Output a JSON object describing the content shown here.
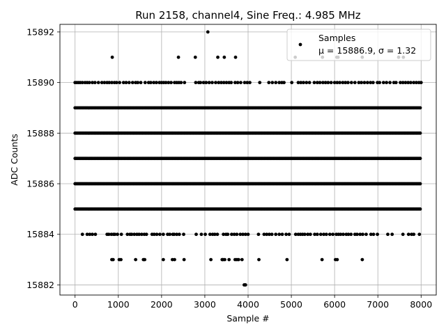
{
  "chart_data": {
    "type": "scatter",
    "title": "Run 2158, channel4, Sine Freq.: 4.985 MHz",
    "xlabel": "Sample #",
    "ylabel": "ADC Counts",
    "xlim": [
      -350,
      8350
    ],
    "ylim": [
      15881.6,
      15892.3
    ],
    "xticks": [
      0,
      1000,
      2000,
      3000,
      4000,
      5000,
      6000,
      7000,
      8000
    ],
    "yticks": [
      15882,
      15884,
      15886,
      15888,
      15890,
      15892
    ],
    "grid": true,
    "legend": {
      "placement": "top-right",
      "series_label": "Samples",
      "stats_label": "μ = 15886.9, σ = 1.32"
    },
    "series": [
      {
        "name": "Samples",
        "color": "#000000",
        "marker": "circle",
        "dense_levels": [
          15885,
          15886,
          15887,
          15888,
          15889
        ],
        "sample_range": [
          0,
          8000
        ],
        "sparse_points": [
          {
            "level": 15890,
            "x": [
              0,
              40,
              80,
              120,
              170,
              230,
              280,
              330,
              400,
              460,
              540,
              620,
              680,
              740,
              790,
              850,
              910,
              960,
              1030,
              1120,
              1180,
              1250,
              1330,
              1400,
              1450,
              1520,
              1620,
              1700,
              1750,
              1820,
              1880,
              1950,
              2000,
              2050,
              2100,
              2160,
              2220,
              2300,
              2350,
              2400,
              2450,
              2530,
              2790,
              2860,
              2900,
              2970,
              3030,
              3100,
              3170,
              3250,
              3320,
              3380,
              3440,
              3500,
              3560,
              3610,
              3700,
              3760,
              3830,
              3920,
              3980,
              4040,
              4270,
              4480,
              4560,
              4640,
              4720,
              4780,
              4830,
              5010,
              5160,
              5220,
              5280,
              5350,
              5420,
              5530,
              5600,
              5660,
              5730,
              5790,
              5850,
              5920,
              6000,
              6060,
              6120,
              6190,
              6250,
              6310,
              6390,
              6470,
              6560,
              6620,
              6690,
              6760,
              6830,
              6890,
              6990,
              7040,
              7130,
              7200,
              7280,
              7370,
              7420,
              7520,
              7580,
              7640,
              7700,
              7760,
              7830,
              7890,
              7950,
              8000
            ]
          },
          {
            "level": 15884,
            "x": [
              170,
              280,
              340,
              400,
              470,
              740,
              780,
              840,
              890,
              920,
              980,
              1070,
              1210,
              1270,
              1310,
              1370,
              1430,
              1480,
              1540,
              1600,
              1650,
              1780,
              1830,
              1890,
              1960,
              2040,
              2140,
              2190,
              2260,
              2290,
              2350,
              2410,
              2510,
              2800,
              2920,
              3010,
              3120,
              3180,
              3230,
              3290,
              3430,
              3490,
              3530,
              3620,
              3680,
              3740,
              3820,
              3880,
              3940,
              4000,
              4240,
              4370,
              4430,
              4490,
              4550,
              4640,
              4720,
              4790,
              4880,
              4950,
              5100,
              5160,
              5210,
              5260,
              5310,
              5380,
              5440,
              5540,
              5600,
              5680,
              5750,
              5810,
              5890,
              5960,
              6040,
              6090,
              6140,
              6200,
              6270,
              6320,
              6380,
              6470,
              6520,
              6590,
              6650,
              6730,
              6840,
              6900,
              6990,
              7230,
              7330,
              7580,
              7710,
              7780,
              7830,
              7960
            ]
          },
          {
            "level": 15883,
            "x": [
              850,
              880,
              1020,
              1060,
              1400,
              1580,
              1610,
              2040,
              2250,
              2300,
              2520,
              3140,
              3400,
              3420,
              3460,
              3560,
              3700,
              3740,
              3780,
              3860,
              4250,
              4900,
              5710,
              6020,
              6060,
              6640
            ]
          },
          {
            "level": 15891,
            "x": [
              860,
              2390,
              2780,
              3300,
              3450,
              3710,
              5090,
              5720,
              6050,
              6080,
              6640,
              7480,
              7590
            ]
          },
          {
            "level": 15892,
            "x": [
              3070
            ]
          },
          {
            "level": 15882,
            "x": [
              3910,
              3940
            ]
          }
        ]
      }
    ]
  }
}
